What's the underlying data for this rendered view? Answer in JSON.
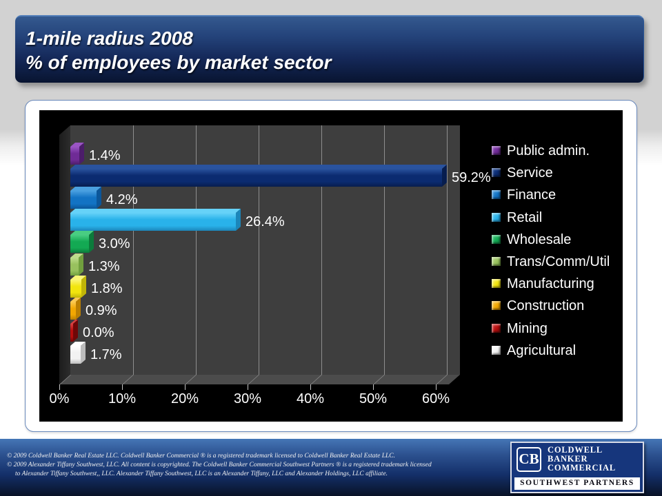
{
  "header": {
    "title_line1": "1-mile radius 2008",
    "title_line2": "% of employees by market sector"
  },
  "chart_data": {
    "type": "bar",
    "orientation": "horizontal",
    "title": "1-mile radius 2008 — % of employees by market sector",
    "categories": [
      "Public admin.",
      "Service",
      "Finance",
      "Retail",
      "Wholesale",
      "Trans/Comm/Util",
      "Manufacturing",
      "Construction",
      "Mining",
      "Agricultural"
    ],
    "values": [
      1.4,
      59.2,
      4.2,
      26.4,
      3.0,
      1.3,
      1.8,
      0.9,
      0.0,
      1.7
    ],
    "data_labels": [
      "1.4%",
      "59.2%",
      "4.2%",
      "26.4%",
      "3.0%",
      "1.3%",
      "1.8%",
      "0.9%",
      "0.0%",
      "1.7%"
    ],
    "colors": [
      {
        "front": "#6f2b96",
        "top": "#9a55c4",
        "end": "#4c1d6a"
      },
      {
        "front": "#0b2b70",
        "top": "#2a539e",
        "end": "#071d4e"
      },
      {
        "front": "#1273c4",
        "top": "#4aa0e0",
        "end": "#0b569a"
      },
      {
        "front": "#29b2ea",
        "top": "#66d2f8",
        "end": "#1b86ba"
      },
      {
        "front": "#13a953",
        "top": "#49cd82",
        "end": "#0c7a3b"
      },
      {
        "front": "#98c15e",
        "top": "#bedc8c",
        "end": "#71a03e"
      },
      {
        "front": "#f2e50e",
        "top": "#fbf576",
        "end": "#c0b408"
      },
      {
        "front": "#f2a702",
        "top": "#fbc952",
        "end": "#ba7e02"
      },
      {
        "front": "#b50d0d",
        "top": "#d84040",
        "end": "#6e0707"
      },
      {
        "front": "#f2f2f2",
        "top": "#ffffff",
        "end": "#bdbdbd"
      }
    ],
    "xlabel": "",
    "ylabel": "",
    "xlim": [
      0,
      60
    ],
    "x_ticks": [
      "0%",
      "10%",
      "20%",
      "30%",
      "40%",
      "50%",
      "60%"
    ],
    "grid": true,
    "legend_position": "right",
    "background": "#000000",
    "wall_color": "#3e3e3e"
  },
  "footer": {
    "lines": [
      "©  2009 Coldwell Banker Real Estate  LLC. Coldwell Banker Commercial ® is a registered trademark licensed to Coldwell Banker Real Estate LLC.",
      "© 2009  Alexander Tiffany Southwest, LLC. All content is copyrighted. The Coldwell Banker Commercial Southwest Partners ® is a registered trademark licensed",
      "to  Alexander Tiffany Southwest,, LLC.   Alexander Tiffany Southwest, LLC is an  Alexander Tiffany, LLC and Alexander Holdings, LLC affiliate."
    ]
  },
  "logo": {
    "monogram": "CB",
    "brand_lines": [
      "COLDWELL",
      "BANKER",
      "COMMERCIAL"
    ],
    "subbrand": "SOUTHWEST PARTNERS"
  }
}
